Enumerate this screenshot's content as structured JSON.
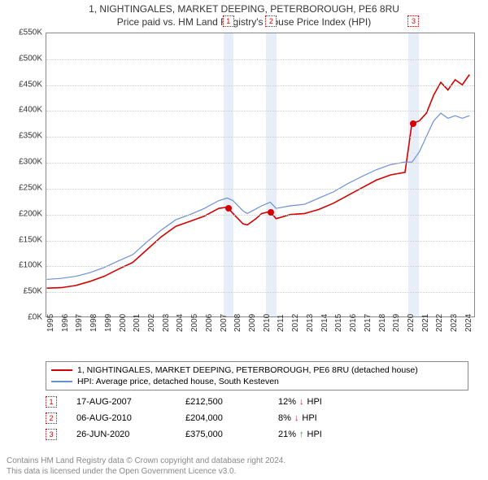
{
  "title": "1, NIGHTINGALES, MARKET DEEPING, PETERBOROUGH, PE6 8RU",
  "subtitle": "Price paid vs. HM Land Registry's House Price Index (HPI)",
  "chart": {
    "type": "line",
    "xlim": [
      1995,
      2024.8
    ],
    "ylim": [
      0,
      550
    ],
    "ytick_step": 50,
    "ytick_prefix": "£",
    "ytick_suffix": "K",
    "xticks": [
      1995,
      1996,
      1997,
      1998,
      1999,
      2000,
      2001,
      2002,
      2003,
      2004,
      2005,
      2006,
      2007,
      2008,
      2009,
      2010,
      2011,
      2012,
      2013,
      2014,
      2015,
      2016,
      2017,
      2018,
      2019,
      2020,
      2021,
      2022,
      2023,
      2024
    ],
    "grid_color": "#cccccc",
    "background_color": "#ffffff",
    "plot_border": "#888888",
    "series": [
      {
        "name": "property",
        "label": "1, NIGHTINGALES, MARKET DEEPING, PETERBOROUGH, PE6 8RU (detached house)",
        "color": "#d40000",
        "width": 1.6,
        "data": [
          [
            1995,
            55
          ],
          [
            1996,
            56
          ],
          [
            1997,
            60
          ],
          [
            1998,
            68
          ],
          [
            1999,
            78
          ],
          [
            2000,
            92
          ],
          [
            2001,
            105
          ],
          [
            2002,
            130
          ],
          [
            2003,
            155
          ],
          [
            2004,
            175
          ],
          [
            2005,
            185
          ],
          [
            2006,
            195
          ],
          [
            2007,
            210
          ],
          [
            2007.6,
            212.5
          ],
          [
            2008,
            200
          ],
          [
            2008.7,
            180
          ],
          [
            2009,
            178
          ],
          [
            2009.6,
            190
          ],
          [
            2010,
            200
          ],
          [
            2010.6,
            204
          ],
          [
            2011,
            190
          ],
          [
            2012,
            198
          ],
          [
            2013,
            200
          ],
          [
            2014,
            208
          ],
          [
            2015,
            220
          ],
          [
            2016,
            235
          ],
          [
            2017,
            250
          ],
          [
            2018,
            265
          ],
          [
            2019,
            275
          ],
          [
            2020,
            280
          ],
          [
            2020.48,
            375
          ],
          [
            2021,
            380
          ],
          [
            2021.5,
            395
          ],
          [
            2022,
            430
          ],
          [
            2022.5,
            455
          ],
          [
            2023,
            440
          ],
          [
            2023.5,
            460
          ],
          [
            2024,
            450
          ],
          [
            2024.5,
            470
          ]
        ]
      },
      {
        "name": "hpi",
        "label": "HPI: Average price, detached house, South Kesteven",
        "color": "#6a8fd4",
        "width": 1.2,
        "data": [
          [
            1995,
            72
          ],
          [
            1996,
            74
          ],
          [
            1997,
            78
          ],
          [
            1998,
            85
          ],
          [
            1999,
            95
          ],
          [
            2000,
            108
          ],
          [
            2001,
            120
          ],
          [
            2002,
            145
          ],
          [
            2003,
            168
          ],
          [
            2004,
            188
          ],
          [
            2005,
            198
          ],
          [
            2006,
            210
          ],
          [
            2007,
            225
          ],
          [
            2007.6,
            230
          ],
          [
            2008,
            225
          ],
          [
            2008.7,
            205
          ],
          [
            2009,
            200
          ],
          [
            2010,
            215
          ],
          [
            2010.6,
            222
          ],
          [
            2011,
            210
          ],
          [
            2012,
            215
          ],
          [
            2013,
            218
          ],
          [
            2014,
            230
          ],
          [
            2015,
            242
          ],
          [
            2016,
            258
          ],
          [
            2017,
            272
          ],
          [
            2018,
            285
          ],
          [
            2019,
            295
          ],
          [
            2020,
            300
          ],
          [
            2020.5,
            300
          ],
          [
            2021,
            320
          ],
          [
            2021.5,
            350
          ],
          [
            2022,
            380
          ],
          [
            2022.5,
            395
          ],
          [
            2023,
            385
          ],
          [
            2023.5,
            390
          ],
          [
            2024,
            385
          ],
          [
            2024.5,
            390
          ]
        ]
      }
    ],
    "markers": [
      {
        "n": "1",
        "x": 2007.63,
        "color": "#d40000"
      },
      {
        "n": "2",
        "x": 2010.6,
        "color": "#d40000"
      },
      {
        "n": "3",
        "x": 2020.48,
        "color": "#d40000"
      }
    ],
    "sale_points": [
      {
        "x": 2007.63,
        "y": 212.5,
        "color": "#d40000"
      },
      {
        "x": 2010.6,
        "y": 204,
        "color": "#d40000"
      },
      {
        "x": 2020.48,
        "y": 375,
        "color": "#d40000"
      }
    ],
    "band_color": "#e8eef8",
    "band_half_width": 0.35
  },
  "legend": {
    "rows": [
      {
        "color": "#d40000",
        "label": "1, NIGHTINGALES, MARKET DEEPING, PETERBOROUGH, PE6 8RU (detached house)"
      },
      {
        "color": "#6a8fd4",
        "label": "HPI: Average price, detached house, South Kesteven"
      }
    ]
  },
  "sales": [
    {
      "n": "1",
      "color": "#d40000",
      "date": "17-AUG-2007",
      "price": "£212,500",
      "pct": "12%",
      "dir": "down",
      "dir_glyph": "↓",
      "suffix": "HPI"
    },
    {
      "n": "2",
      "color": "#d40000",
      "date": "06-AUG-2010",
      "price": "£204,000",
      "pct": "8%",
      "dir": "down",
      "dir_glyph": "↓",
      "suffix": "HPI"
    },
    {
      "n": "3",
      "color": "#d40000",
      "date": "26-JUN-2020",
      "price": "£375,000",
      "pct": "21%",
      "dir": "up",
      "dir_glyph": "↑",
      "suffix": "HPI"
    }
  ],
  "footer": {
    "line1": "Contains HM Land Registry data © Crown copyright and database right 2024.",
    "line2": "This data is licensed under the Open Government Licence v3.0."
  },
  "arrow_colors": {
    "up": "#2e7d32",
    "down": "#c62828"
  }
}
